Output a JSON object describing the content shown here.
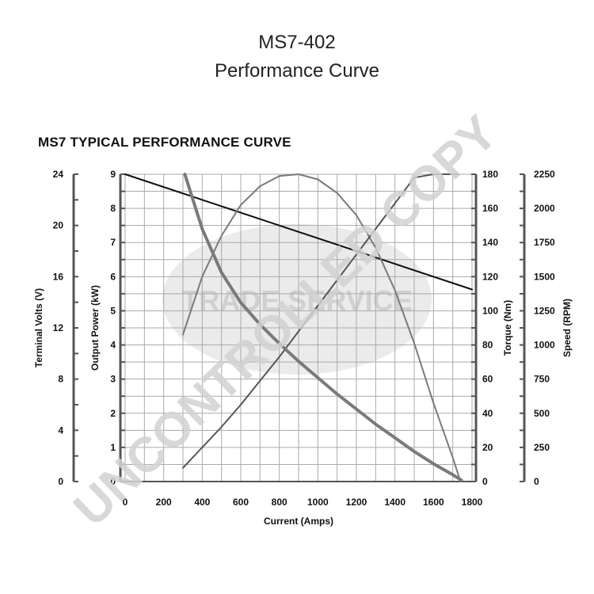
{
  "page": {
    "title_line1": "MS7-402",
    "title_line2": "Performance Curve"
  },
  "watermark": {
    "text": "UNCONTROLLED COPY",
    "logo_text": "TRADE SERVICE"
  },
  "colors": {
    "grid": "#aaaaaa",
    "axis": "#555555",
    "voltage": "#111111",
    "power": "#7a7a7a",
    "torque": "#555555",
    "speed": "#7a7a7a",
    "watermark": "#cfcfcf"
  },
  "chart_data": {
    "type": "line",
    "title": "MS7 TYPICAL PERFORMANCE CURVE",
    "xlabel": "Current (Amps)",
    "xlim": [
      0,
      1800
    ],
    "xticks": [
      0,
      200,
      400,
      600,
      800,
      1000,
      1200,
      1400,
      1600,
      1800
    ],
    "grid": true,
    "axes": [
      {
        "key": "volts",
        "label": "Terminal Volts (V)",
        "side": "left-outer",
        "lim": [
          0,
          24
        ],
        "ticks": [
          0,
          4,
          8,
          12,
          16,
          20,
          24
        ]
      },
      {
        "key": "power",
        "label": "Output Power (kW)",
        "side": "left-inner",
        "lim": [
          0,
          9
        ],
        "ticks": [
          0,
          1,
          2,
          3,
          4,
          5,
          6,
          7,
          8,
          9
        ]
      },
      {
        "key": "torque",
        "label": "Torque (Nm)",
        "side": "right-inner",
        "lim": [
          0,
          180
        ],
        "ticks": [
          0,
          20,
          40,
          60,
          80,
          100,
          120,
          140,
          160,
          180
        ]
      },
      {
        "key": "speed",
        "label": "Speed (RPM)",
        "side": "right-outer",
        "lim": [
          0,
          2250
        ],
        "ticks": [
          0,
          250,
          500,
          750,
          1000,
          1250,
          1500,
          1750,
          2000,
          2250
        ]
      }
    ],
    "series": [
      {
        "id": "voltage",
        "axis": "volts",
        "x": [
          0,
          1800
        ],
        "y": [
          24,
          15
        ]
      },
      {
        "id": "power",
        "axis": "power",
        "x": [
          300,
          400,
          500,
          600,
          700,
          800,
          900,
          1000,
          1100,
          1200,
          1300,
          1400,
          1500,
          1600,
          1700,
          1740
        ],
        "y": [
          4.3,
          6.0,
          7.2,
          8.1,
          8.65,
          8.95,
          9.0,
          8.85,
          8.45,
          7.8,
          6.85,
          5.6,
          4.05,
          2.3,
          0.7,
          0.0
        ]
      },
      {
        "id": "torque",
        "axis": "torque",
        "x": [
          300,
          400,
          500,
          600,
          700,
          800,
          900,
          1000,
          1100,
          1200,
          1300,
          1400,
          1500,
          1600,
          1700,
          1730
        ],
        "y": [
          8,
          20,
          32,
          45,
          59,
          73,
          88,
          103,
          118,
          133,
          148,
          163,
          178,
          180,
          180,
          180
        ]
      },
      {
        "id": "speed",
        "axis": "speed",
        "x": [
          310,
          400,
          500,
          600,
          700,
          800,
          900,
          1000,
          1100,
          1200,
          1300,
          1400,
          1500,
          1600,
          1700,
          1745
        ],
        "y": [
          2250,
          1850,
          1530,
          1310,
          1150,
          1010,
          880,
          760,
          640,
          530,
          420,
          320,
          220,
          130,
          50,
          10
        ]
      }
    ]
  }
}
